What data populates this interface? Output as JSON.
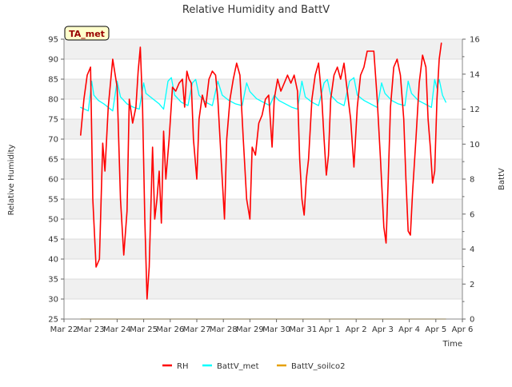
{
  "chart_data": {
    "type": "line",
    "title": "Relative Humidity and BattV",
    "station_label": "TA_met",
    "xlabel": "Time",
    "ylabel_left": "Relative Humidity",
    "ylabel_right": "BattV",
    "ylim_left": [
      25,
      95
    ],
    "ylim_right": [
      0,
      16
    ],
    "xlim": [
      "2024-03-22",
      "2024-04-06"
    ],
    "x_ticks": [
      "Mar 22",
      "Mar 23",
      "Mar 24",
      "Mar 25",
      "Mar 26",
      "Mar 27",
      "Mar 28",
      "Mar 29",
      "Mar 30",
      "Mar 31",
      "Apr 1",
      "Apr 2",
      "Apr 3",
      "Apr 4",
      "Apr 5",
      "Apr 6"
    ],
    "y_ticks_left": [
      25,
      30,
      35,
      40,
      45,
      50,
      55,
      60,
      65,
      70,
      75,
      80,
      85,
      90,
      95
    ],
    "y_ticks_right": [
      0,
      2,
      4,
      6,
      8,
      10,
      12,
      14,
      16
    ],
    "grid": true,
    "legend_position": "bottom",
    "series": [
      {
        "name": "RH",
        "axis": "left",
        "color": "#ff0000",
        "points": [
          [
            "2024-03-22 15:00",
            71
          ],
          [
            "2024-03-22 18:00",
            80
          ],
          [
            "2024-03-22 21:00",
            86
          ],
          [
            "2024-03-23 00:00",
            88
          ],
          [
            "2024-03-23 02:00",
            55
          ],
          [
            "2024-03-23 05:00",
            38
          ],
          [
            "2024-03-23 08:00",
            40
          ],
          [
            "2024-03-23 11:00",
            69
          ],
          [
            "2024-03-23 13:00",
            62
          ],
          [
            "2024-03-23 16:00",
            78
          ],
          [
            "2024-03-23 20:00",
            90
          ],
          [
            "2024-03-24 00:00",
            83
          ],
          [
            "2024-03-24 03:00",
            55
          ],
          [
            "2024-03-24 06:00",
            41
          ],
          [
            "2024-03-24 09:00",
            52
          ],
          [
            "2024-03-24 11:00",
            80
          ],
          [
            "2024-03-24 14:00",
            74
          ],
          [
            "2024-03-24 17:00",
            78
          ],
          [
            "2024-03-24 19:00",
            87
          ],
          [
            "2024-03-24 21:00",
            93
          ],
          [
            "2024-03-24 23:00",
            78
          ],
          [
            "2024-03-25 01:00",
            50
          ],
          [
            "2024-03-25 03:00",
            30
          ],
          [
            "2024-03-25 05:00",
            38
          ],
          [
            "2024-03-25 08:00",
            68
          ],
          [
            "2024-03-25 10:00",
            50
          ],
          [
            "2024-03-25 12:00",
            55
          ],
          [
            "2024-03-25 14:00",
            62
          ],
          [
            "2024-03-25 16:00",
            49
          ],
          [
            "2024-03-25 18:00",
            72
          ],
          [
            "2024-03-25 20:00",
            60
          ],
          [
            "2024-03-25 23:00",
            70
          ],
          [
            "2024-03-26 02:00",
            83
          ],
          [
            "2024-03-26 05:00",
            82
          ],
          [
            "2024-03-26 08:00",
            84
          ],
          [
            "2024-03-26 11:00",
            85
          ],
          [
            "2024-03-26 13:00",
            78
          ],
          [
            "2024-03-26 15:00",
            87
          ],
          [
            "2024-03-26 17:00",
            85
          ],
          [
            "2024-03-26 19:00",
            84
          ],
          [
            "2024-03-26 21:00",
            70
          ],
          [
            "2024-03-27 00:00",
            60
          ],
          [
            "2024-03-27 02:00",
            75
          ],
          [
            "2024-03-27 05:00",
            81
          ],
          [
            "2024-03-27 08:00",
            78
          ],
          [
            "2024-03-27 11:00",
            85
          ],
          [
            "2024-03-27 14:00",
            87
          ],
          [
            "2024-03-27 17:00",
            86
          ],
          [
            "2024-03-27 19:00",
            80
          ],
          [
            "2024-03-27 22:00",
            65
          ],
          [
            "2024-03-28 01:00",
            50
          ],
          [
            "2024-03-28 03:00",
            70
          ],
          [
            "2024-03-28 06:00",
            80
          ],
          [
            "2024-03-28 09:00",
            85
          ],
          [
            "2024-03-28 12:00",
            89
          ],
          [
            "2024-03-28 15:00",
            86
          ],
          [
            "2024-03-28 18:00",
            70
          ],
          [
            "2024-03-28 21:00",
            55
          ],
          [
            "2024-03-29 00:00",
            50
          ],
          [
            "2024-03-29 02:00",
            68
          ],
          [
            "2024-03-29 05:00",
            66
          ],
          [
            "2024-03-29 08:00",
            74
          ],
          [
            "2024-03-29 11:00",
            76
          ],
          [
            "2024-03-29 14:00",
            80
          ],
          [
            "2024-03-29 17:00",
            81
          ],
          [
            "2024-03-29 20:00",
            68
          ],
          [
            "2024-03-29 22:00",
            80
          ],
          [
            "2024-03-30 01:00",
            85
          ],
          [
            "2024-03-30 04:00",
            82
          ],
          [
            "2024-03-30 07:00",
            84
          ],
          [
            "2024-03-30 10:00",
            86
          ],
          [
            "2024-03-30 13:00",
            84
          ],
          [
            "2024-03-30 16:00",
            86
          ],
          [
            "2024-03-30 19:00",
            82
          ],
          [
            "2024-03-30 21:00",
            65
          ],
          [
            "2024-03-30 23:00",
            55
          ],
          [
            "2024-03-31 01:00",
            51
          ],
          [
            "2024-03-31 03:00",
            60
          ],
          [
            "2024-03-31 05:00",
            65
          ],
          [
            "2024-03-31 08:00",
            80
          ],
          [
            "2024-03-31 11:00",
            86
          ],
          [
            "2024-03-31 14:00",
            89
          ],
          [
            "2024-03-31 17:00",
            80
          ],
          [
            "2024-03-31 19:00",
            70
          ],
          [
            "2024-03-31 21:00",
            61
          ],
          [
            "2024-03-31 23:00",
            66
          ],
          [
            "2024-04-01 01:00",
            80
          ],
          [
            "2024-04-01 04:00",
            86
          ],
          [
            "2024-04-01 07:00",
            88
          ],
          [
            "2024-04-01 10:00",
            85
          ],
          [
            "2024-04-01 13:00",
            89
          ],
          [
            "2024-04-01 16:00",
            82
          ],
          [
            "2024-04-01 19:00",
            75
          ],
          [
            "2024-04-01 22:00",
            63
          ],
          [
            "2024-04-02 01:00",
            78
          ],
          [
            "2024-04-02 04:00",
            86
          ],
          [
            "2024-04-02 07:00",
            88
          ],
          [
            "2024-04-02 10:00",
            92
          ],
          [
            "2024-04-02 13:00",
            92
          ],
          [
            "2024-04-02 16:00",
            92
          ],
          [
            "2024-04-02 19:00",
            80
          ],
          [
            "2024-04-02 22:00",
            65
          ],
          [
            "2024-04-03 01:00",
            48
          ],
          [
            "2024-04-03 03:00",
            44
          ],
          [
            "2024-04-03 05:00",
            60
          ],
          [
            "2024-04-03 07:00",
            78
          ],
          [
            "2024-04-03 10:00",
            88
          ],
          [
            "2024-04-03 13:00",
            90
          ],
          [
            "2024-04-03 16:00",
            86
          ],
          [
            "2024-04-03 19:00",
            75
          ],
          [
            "2024-04-03 21:00",
            60
          ],
          [
            "2024-04-03 23:00",
            47
          ],
          [
            "2024-04-04 01:00",
            46
          ],
          [
            "2024-04-04 03:00",
            57
          ],
          [
            "2024-04-04 06:00",
            70
          ],
          [
            "2024-04-04 09:00",
            84
          ],
          [
            "2024-04-04 12:00",
            91
          ],
          [
            "2024-04-04 15:00",
            88
          ],
          [
            "2024-04-04 17:00",
            75
          ],
          [
            "2024-04-04 19:00",
            68
          ],
          [
            "2024-04-04 21:00",
            59
          ],
          [
            "2024-04-04 23:00",
            62
          ],
          [
            "2024-04-05 01:00",
            80
          ],
          [
            "2024-04-05 03:00",
            90
          ],
          [
            "2024-04-05 05:00",
            94
          ]
        ]
      },
      {
        "name": "BattV_met",
        "axis": "right",
        "color": "#00ffff",
        "points": [
          [
            "2024-03-22 15:00",
            12.1
          ],
          [
            "2024-03-22 22:00",
            11.9
          ],
          [
            "2024-03-23 01:00",
            13.6
          ],
          [
            "2024-03-23 03:00",
            12.8
          ],
          [
            "2024-03-23 07:00",
            12.5
          ],
          [
            "2024-03-23 12:00",
            12.3
          ],
          [
            "2024-03-23 16:00",
            12.1
          ],
          [
            "2024-03-23 20:00",
            11.9
          ],
          [
            "2024-03-24 00:00",
            13.6
          ],
          [
            "2024-03-24 03:00",
            12.7
          ],
          [
            "2024-03-24 09:00",
            12.3
          ],
          [
            "2024-03-24 15:00",
            12.1
          ],
          [
            "2024-03-24 20:00",
            12.0
          ],
          [
            "2024-03-25 00:00",
            13.5
          ],
          [
            "2024-03-25 02:00",
            12.9
          ],
          [
            "2024-03-25 08:00",
            12.6
          ],
          [
            "2024-03-25 14:00",
            12.3
          ],
          [
            "2024-03-25 18:00",
            12.0
          ],
          [
            "2024-03-25 22:00",
            13.6
          ],
          [
            "2024-03-26 01:00",
            13.8
          ],
          [
            "2024-03-26 04:00",
            12.8
          ],
          [
            "2024-03-26 10:00",
            12.4
          ],
          [
            "2024-03-26 16:00",
            12.2
          ],
          [
            "2024-03-26 20:00",
            13.5
          ],
          [
            "2024-03-26 23:00",
            13.7
          ],
          [
            "2024-03-27 02:00",
            12.8
          ],
          [
            "2024-03-27 08:00",
            12.4
          ],
          [
            "2024-03-27 14:00",
            12.2
          ],
          [
            "2024-03-27 19:00",
            13.6
          ],
          [
            "2024-03-27 23:00",
            12.8
          ],
          [
            "2024-03-28 05:00",
            12.5
          ],
          [
            "2024-03-28 11:00",
            12.3
          ],
          [
            "2024-03-28 17:00",
            12.2
          ],
          [
            "2024-03-28 21:00",
            13.5
          ],
          [
            "2024-03-29 00:00",
            13.0
          ],
          [
            "2024-03-29 06:00",
            12.6
          ],
          [
            "2024-03-29 12:00",
            12.4
          ],
          [
            "2024-03-29 18:00",
            12.2
          ],
          [
            "2024-03-29 22:00",
            12.8
          ],
          [
            "2024-03-30 02:00",
            12.5
          ],
          [
            "2024-03-30 08:00",
            12.3
          ],
          [
            "2024-03-30 14:00",
            12.1
          ],
          [
            "2024-03-30 19:00",
            12.0
          ],
          [
            "2024-03-30 23:00",
            13.6
          ],
          [
            "2024-03-31 02:00",
            12.7
          ],
          [
            "2024-03-31 08:00",
            12.4
          ],
          [
            "2024-03-31 14:00",
            12.2
          ],
          [
            "2024-03-31 19:00",
            13.5
          ],
          [
            "2024-03-31 22:00",
            13.7
          ],
          [
            "2024-04-01 01:00",
            12.8
          ],
          [
            "2024-04-01 07:00",
            12.4
          ],
          [
            "2024-04-01 13:00",
            12.2
          ],
          [
            "2024-04-01 18:00",
            13.6
          ],
          [
            "2024-04-01 22:00",
            13.8
          ],
          [
            "2024-04-02 01:00",
            12.8
          ],
          [
            "2024-04-02 07:00",
            12.5
          ],
          [
            "2024-04-02 13:00",
            12.3
          ],
          [
            "2024-04-02 19:00",
            12.1
          ],
          [
            "2024-04-02 23:00",
            13.5
          ],
          [
            "2024-04-03 02:00",
            12.9
          ],
          [
            "2024-04-03 08:00",
            12.5
          ],
          [
            "2024-04-03 14:00",
            12.3
          ],
          [
            "2024-04-03 20:00",
            12.2
          ],
          [
            "2024-04-03 23:00",
            13.6
          ],
          [
            "2024-04-04 02:00",
            12.9
          ],
          [
            "2024-04-04 08:00",
            12.5
          ],
          [
            "2024-04-04 14:00",
            12.3
          ],
          [
            "2024-04-04 20:00",
            12.1
          ],
          [
            "2024-04-04 23:00",
            13.7
          ],
          [
            "2024-04-05 01:00",
            13.2
          ],
          [
            "2024-04-05 03:00",
            13.7
          ],
          [
            "2024-04-05 06:00",
            12.8
          ],
          [
            "2024-04-05 09:00",
            12.4
          ]
        ]
      },
      {
        "name": "BattV_soilco2",
        "axis": "right",
        "color": "#e6a000",
        "points": [
          [
            "2024-03-22 15:00",
            0.0
          ],
          [
            "2024-04-05 09:00",
            0.0
          ]
        ]
      }
    ]
  }
}
